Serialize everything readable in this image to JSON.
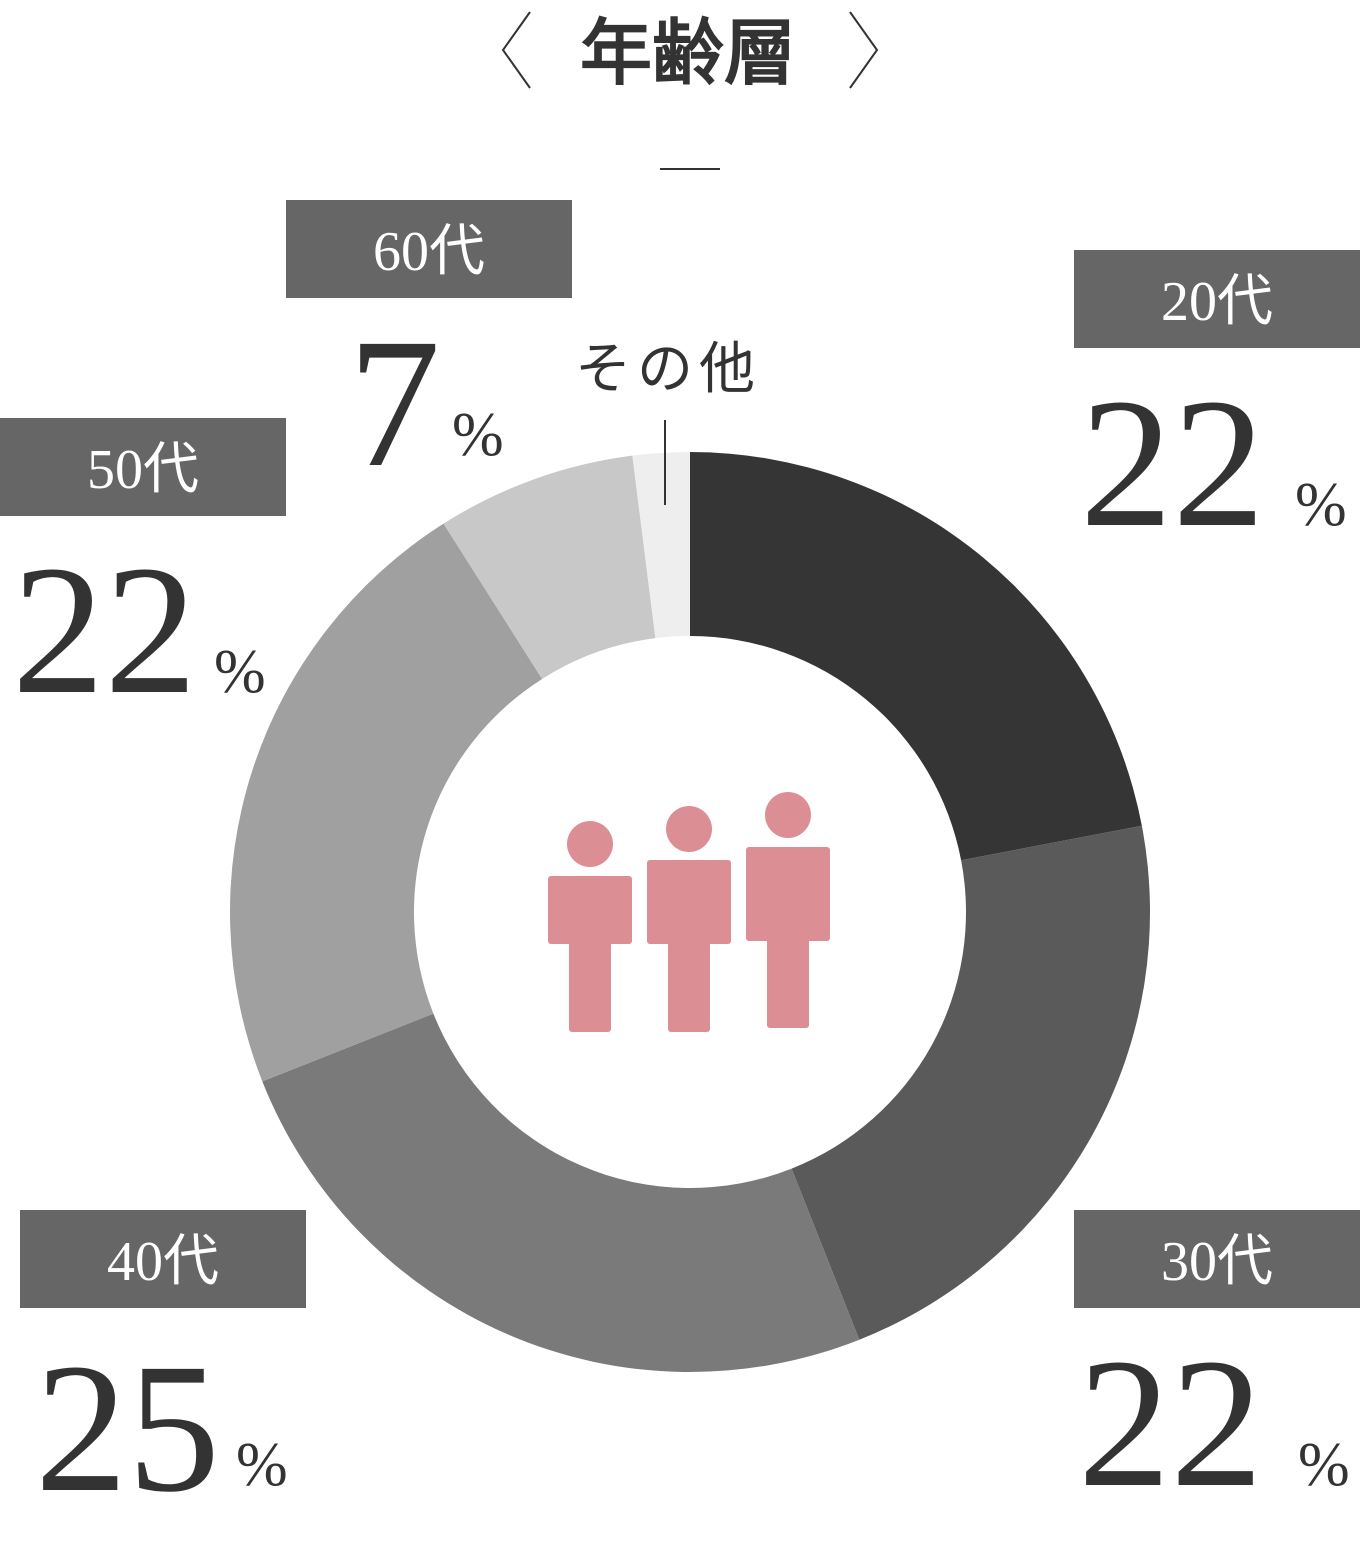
{
  "chart_data": {
    "type": "donut",
    "title": "年齢層",
    "categories": [
      "20代",
      "30代",
      "40代",
      "50代",
      "60代",
      "その他"
    ],
    "values": [
      22,
      22,
      25,
      22,
      7,
      2
    ],
    "unit": "%",
    "colors": [
      "#353535",
      "#5a5a5a",
      "#7a7a7a",
      "#a0a0a0",
      "#c8c8c8",
      "#eeeeee"
    ]
  }
}
